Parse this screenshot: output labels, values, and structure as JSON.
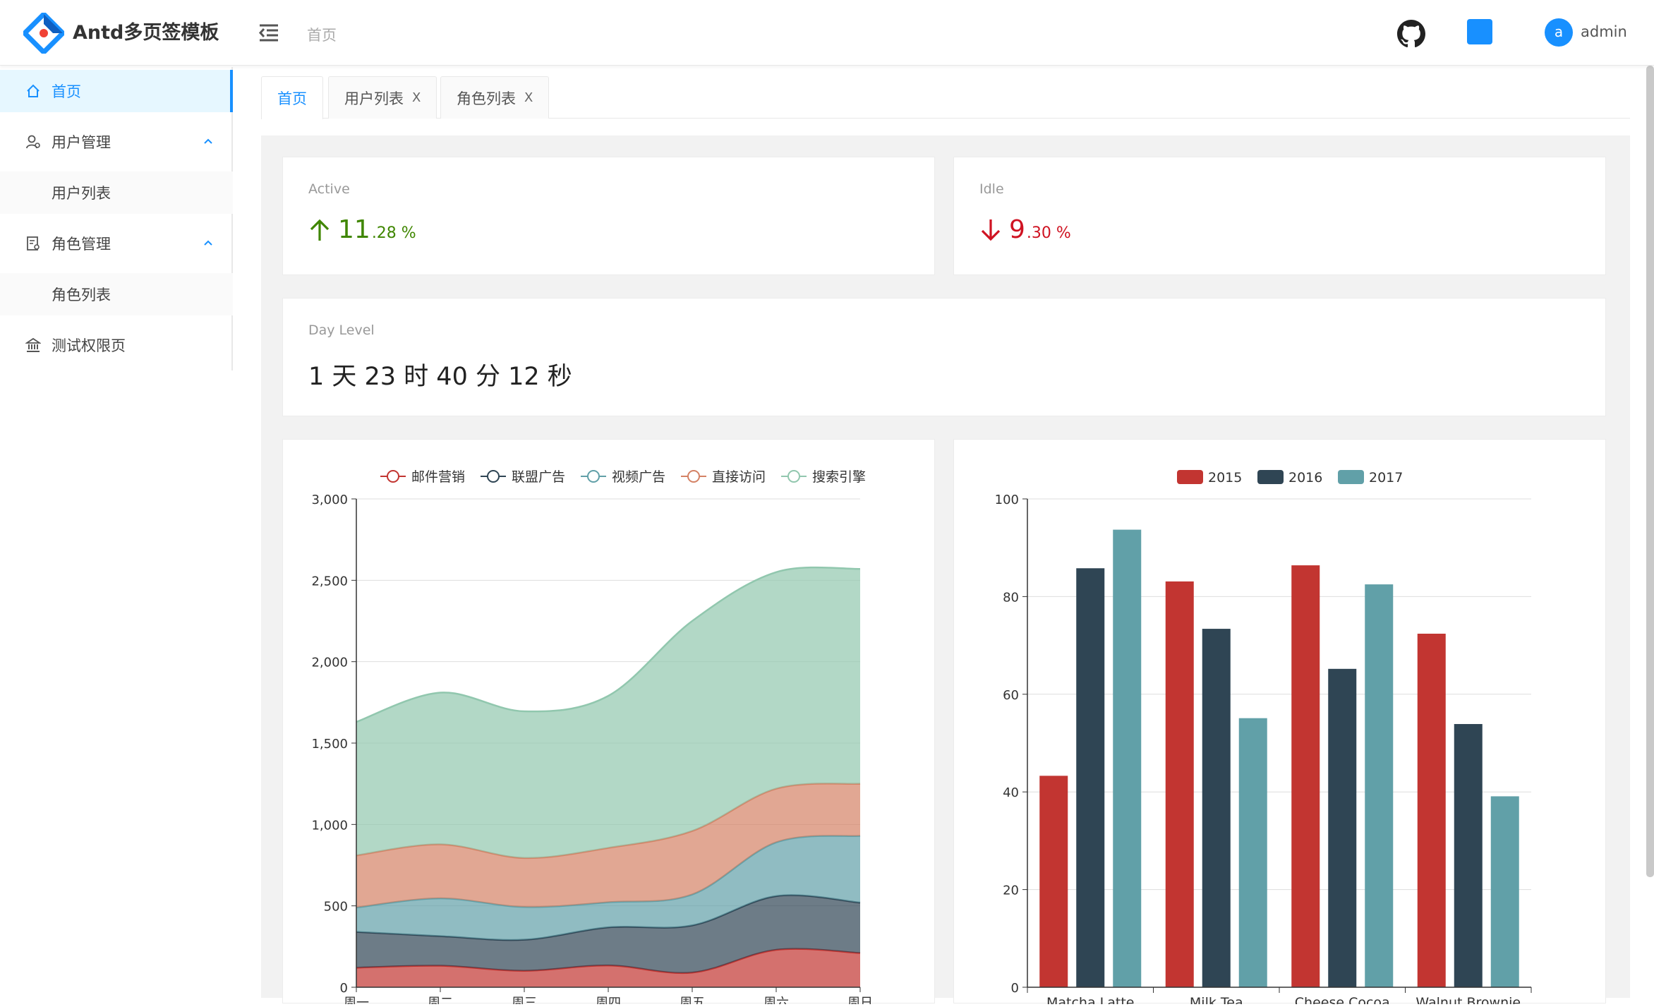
{
  "header": {
    "app_title": "Antd多页签模板",
    "breadcrumb": "首页",
    "user_initial": "a",
    "user_name": "admin",
    "accent": "#1890ff"
  },
  "sidebar": {
    "items": [
      {
        "label": "首页",
        "icon": "home-icon",
        "active": true
      },
      {
        "label": "用户管理",
        "icon": "user-icon",
        "expanded": true
      },
      {
        "label": "用户列表",
        "sub": true
      },
      {
        "label": "角色管理",
        "icon": "role-icon",
        "expanded": true
      },
      {
        "label": "角色列表",
        "sub": true
      },
      {
        "label": "测试权限页",
        "icon": "bank-icon"
      }
    ]
  },
  "tabs": [
    {
      "label": "首页",
      "closable": false,
      "active": true
    },
    {
      "label": "用户列表",
      "closable": true,
      "close": "X"
    },
    {
      "label": "角色列表",
      "closable": true,
      "close": "X"
    }
  ],
  "stats": {
    "active": {
      "label": "Active",
      "int": "11",
      "dec": ".28 %",
      "trend": "up",
      "color": "#3f8600"
    },
    "idle": {
      "label": "Idle",
      "int": "9",
      "dec": ".30 %",
      "trend": "down",
      "color": "#cf1322"
    },
    "day_level": {
      "label": "Day Level",
      "value": "1 天 23 时 40 分 12 秒"
    }
  },
  "chart_data": [
    {
      "type": "area",
      "stacked": true,
      "smooth": true,
      "x": [
        "周一",
        "周二",
        "周三",
        "周四",
        "周五",
        "周六",
        "周日"
      ],
      "ylim": [
        0,
        3000
      ],
      "yticks": [
        "0",
        "500",
        "1,000",
        "1,500",
        "2,000",
        "2,500",
        "3,000"
      ],
      "legend_position": "top",
      "grid": true,
      "series": [
        {
          "name": "邮件营销",
          "values": [
            120,
            132,
            101,
            134,
            90,
            230,
            210
          ],
          "color": "#c23531"
        },
        {
          "name": "联盟广告",
          "values": [
            220,
            182,
            191,
            234,
            290,
            330,
            310
          ],
          "color": "#2f4554"
        },
        {
          "name": "视频广告",
          "values": [
            150,
            232,
            201,
            154,
            190,
            330,
            410
          ],
          "color": "#61a0a8"
        },
        {
          "name": "直接访问",
          "values": [
            320,
            332,
            301,
            334,
            390,
            330,
            320
          ],
          "color": "#d48265"
        },
        {
          "name": "搜索引擎",
          "values": [
            820,
            932,
            901,
            934,
            1290,
            1330,
            1320
          ],
          "color": "#91c7ae"
        }
      ]
    },
    {
      "type": "bar",
      "categories": [
        "Matcha Latte",
        "Milk Tea",
        "Cheese Cocoa",
        "Walnut Brownie"
      ],
      "ylim": [
        0,
        100
      ],
      "yticks": [
        "0",
        "20",
        "40",
        "60",
        "80",
        "100"
      ],
      "legend_position": "top",
      "grid": true,
      "series": [
        {
          "name": "2015",
          "values": [
            43.3,
            83.1,
            86.4,
            72.4
          ],
          "color": "#c23531"
        },
        {
          "name": "2016",
          "values": [
            85.8,
            73.4,
            65.2,
            53.9
          ],
          "color": "#2f4554"
        },
        {
          "name": "2017",
          "values": [
            93.7,
            55.1,
            82.5,
            39.1
          ],
          "color": "#61a0a8"
        }
      ]
    }
  ]
}
